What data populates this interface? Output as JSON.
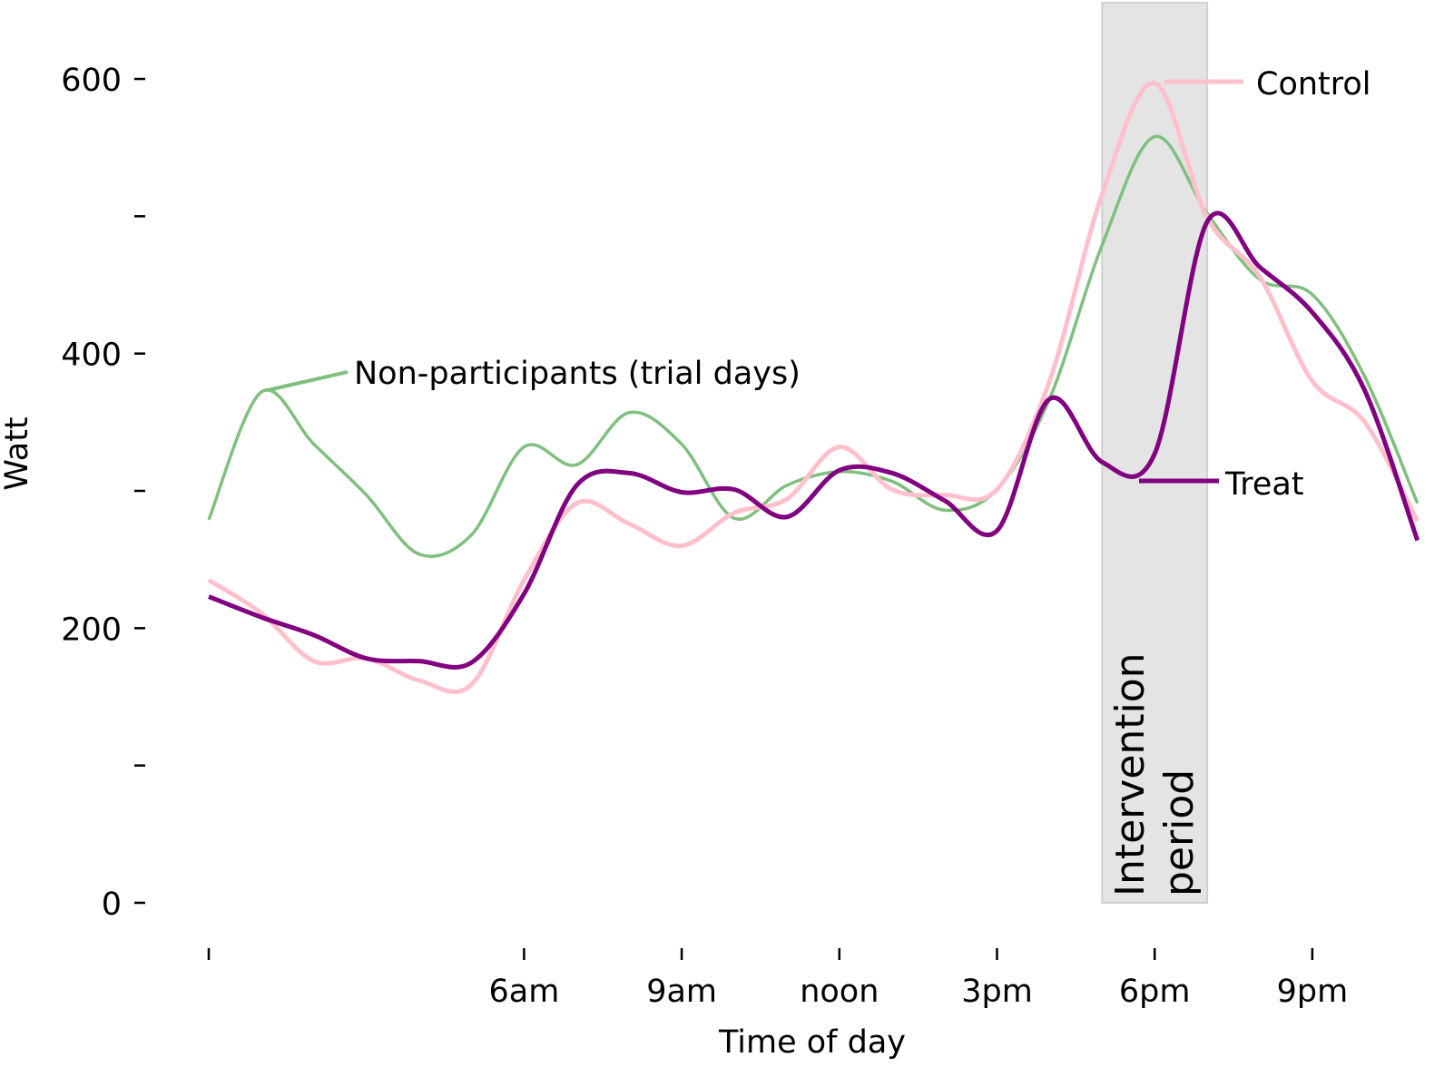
{
  "chart_data": {
    "type": "line",
    "xlabel": "Time of day",
    "ylabel": "Watt",
    "xlim": [
      0,
      23
    ],
    "ylim": [
      -30,
      657
    ],
    "grid": false,
    "x_ticks": [
      0,
      6,
      9,
      12,
      15,
      18,
      21
    ],
    "x_tick_labels": [
      "",
      "6am",
      "9am",
      "noon",
      "3pm",
      "6pm",
      "9pm"
    ],
    "y_ticks": [
      0,
      100,
      200,
      300,
      400,
      500,
      600
    ],
    "y_tick_labels": [
      "0",
      "",
      "200",
      "",
      "400",
      "",
      "600"
    ],
    "x": [
      0,
      1,
      2,
      3,
      4,
      5,
      6,
      7,
      8,
      9,
      10,
      11,
      12,
      13,
      14,
      15,
      16,
      17,
      18,
      19,
      20,
      21,
      22,
      23
    ],
    "series": [
      {
        "name": "Non-participants (trial days)",
        "color": "#7fbf7f",
        "values": [
          279,
          372,
          334,
          297,
          254,
          268,
          332,
          319,
          357,
          334,
          280,
          304,
          314,
          307,
          286,
          301,
          367,
          479,
          558,
          502,
          454,
          443,
          383,
          291
        ]
      },
      {
        "name": "Control",
        "color": "#ffc0cb",
        "values": [
          235,
          211,
          176,
          178,
          162,
          159,
          235,
          291,
          276,
          260,
          284,
          294,
          332,
          301,
          297,
          301,
          380,
          516,
          597,
          499,
          456,
          380,
          350,
          278
        ]
      },
      {
        "name": "Treat",
        "color": "#800080",
        "values": [
          223,
          208,
          195,
          178,
          176,
          175,
          225,
          304,
          313,
          299,
          301,
          281,
          315,
          313,
          293,
          271,
          367,
          321,
          327,
          496,
          463,
          430,
          373,
          264
        ]
      }
    ],
    "shaded_region": {
      "x_range": [
        17,
        19
      ],
      "color": "#e4e4e4",
      "label_lines": [
        "Intervention",
        "period"
      ]
    },
    "legend": "inline labels at line ends"
  }
}
